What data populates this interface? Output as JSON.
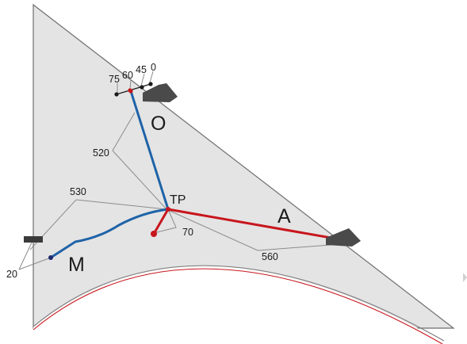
{
  "diagram": {
    "labels": {
      "O": "O",
      "M": "M",
      "A": "A",
      "TP": "TP",
      "n0": "0",
      "n45": "45",
      "n60": "60",
      "n75": "75",
      "n520": "520",
      "n530": "530",
      "n70": "70",
      "n560": "560",
      "n20": "20"
    },
    "colors": {
      "panel_fill": "#e4e4e4",
      "panel_edge": "#6e6e6e",
      "blue_path": "#1f63a8",
      "red_path": "#c8161d",
      "leader_line": "#8c8c8c",
      "marker_dark": "#4a4a4a"
    }
  }
}
